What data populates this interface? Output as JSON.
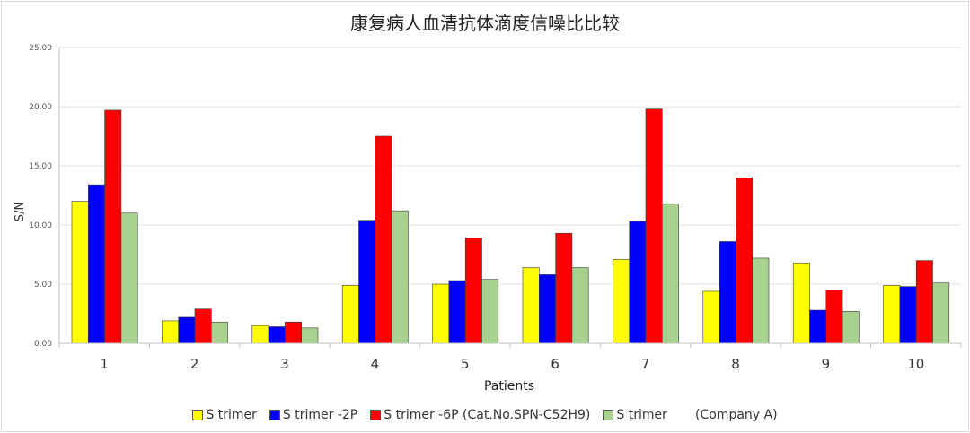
{
  "chart_data": {
    "type": "bar",
    "title": "康复病人血清抗体滴度信噪比比较",
    "xlabel": "Patients",
    "ylabel": "S/N",
    "ylim": [
      0,
      25
    ],
    "yticks": [
      "0.00",
      "5.00",
      "10.00",
      "15.00",
      "20.00",
      "25.00"
    ],
    "grid": true,
    "legend_position": "bottom",
    "categories": [
      "1",
      "2",
      "3",
      "4",
      "5",
      "6",
      "7",
      "8",
      "9",
      "10"
    ],
    "series": [
      {
        "name": "S trimer",
        "color": "#ffff00",
        "values": [
          12.0,
          1.9,
          1.5,
          4.9,
          5.0,
          6.4,
          7.1,
          4.4,
          6.8,
          4.9
        ]
      },
      {
        "name": "S trimer -2P",
        "color": "#0000ff",
        "values": [
          13.4,
          2.2,
          1.4,
          10.4,
          5.3,
          5.8,
          10.3,
          8.6,
          2.8,
          4.8
        ]
      },
      {
        "name": "S trimer -6P (Cat.No.SPN-C52H9)",
        "color": "#ff0000",
        "values": [
          19.7,
          2.9,
          1.8,
          17.5,
          8.9,
          9.3,
          19.8,
          14.0,
          4.5,
          7.0
        ]
      },
      {
        "name": "S trimer       (Company A)",
        "color": "#a9d18e",
        "values": [
          11.0,
          1.8,
          1.3,
          11.2,
          5.4,
          6.4,
          11.8,
          7.2,
          2.7,
          5.1
        ]
      }
    ]
  }
}
